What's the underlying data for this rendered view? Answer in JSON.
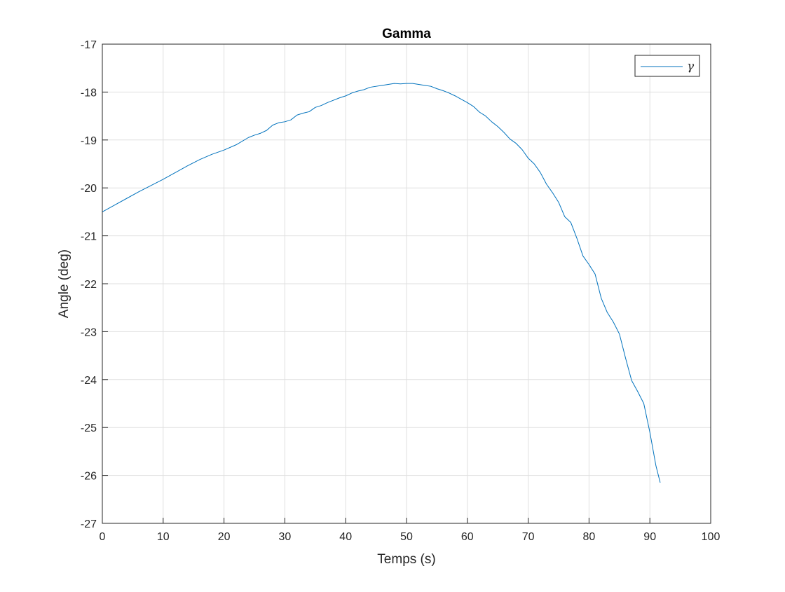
{
  "chart_data": {
    "type": "line",
    "title": "Gamma",
    "xlabel": "Temps (s)",
    "ylabel": "Angle (deg)",
    "xlim": [
      0,
      100
    ],
    "ylim": [
      -27,
      -17
    ],
    "xticks": [
      0,
      10,
      20,
      30,
      40,
      50,
      60,
      70,
      80,
      90,
      100
    ],
    "yticks": [
      -17,
      -18,
      -19,
      -20,
      -21,
      -22,
      -23,
      -24,
      -25,
      -26,
      -27
    ],
    "grid": true,
    "legend_position": "top-right",
    "series": [
      {
        "name": "γ",
        "color": "#0072BD",
        "x": [
          0,
          2,
          4,
          6,
          8,
          10,
          12,
          14,
          16,
          18,
          20,
          22,
          24,
          25,
          26,
          27,
          28,
          29,
          30,
          31,
          32,
          33,
          34,
          35,
          36,
          37,
          38,
          39,
          40,
          41,
          42,
          43,
          44,
          45,
          46,
          47,
          48,
          49,
          50,
          51,
          52,
          53,
          54,
          55,
          56,
          57,
          58,
          59,
          60,
          61,
          62,
          63,
          64,
          65,
          66,
          67,
          68,
          69,
          70,
          71,
          72,
          73,
          74,
          75,
          76,
          77,
          78,
          79,
          80,
          81,
          82,
          83,
          84,
          85,
          86,
          87,
          88,
          89,
          90,
          91,
          91.7
        ],
        "y": [
          -20.5,
          -20.36,
          -20.22,
          -20.08,
          -19.95,
          -19.82,
          -19.68,
          -19.54,
          -19.41,
          -19.3,
          -19.21,
          -19.1,
          -18.95,
          -18.9,
          -18.86,
          -18.8,
          -18.69,
          -18.64,
          -18.62,
          -18.58,
          -18.48,
          -18.44,
          -18.41,
          -18.32,
          -18.28,
          -18.22,
          -18.17,
          -18.12,
          -18.08,
          -18.02,
          -17.98,
          -17.95,
          -17.9,
          -17.88,
          -17.86,
          -17.84,
          -17.82,
          -17.83,
          -17.82,
          -17.82,
          -17.84,
          -17.86,
          -17.88,
          -17.93,
          -17.97,
          -18.02,
          -18.08,
          -18.15,
          -18.22,
          -18.3,
          -18.42,
          -18.5,
          -18.62,
          -18.72,
          -18.84,
          -18.98,
          -19.07,
          -19.2,
          -19.38,
          -19.5,
          -19.68,
          -19.92,
          -20.1,
          -20.3,
          -20.6,
          -20.72,
          -21.05,
          -21.42,
          -21.6,
          -21.8,
          -22.3,
          -22.6,
          -22.8,
          -23.05,
          -23.55,
          -24.02,
          -24.25,
          -24.5,
          -25.1,
          -25.8,
          -26.15
        ]
      }
    ]
  }
}
